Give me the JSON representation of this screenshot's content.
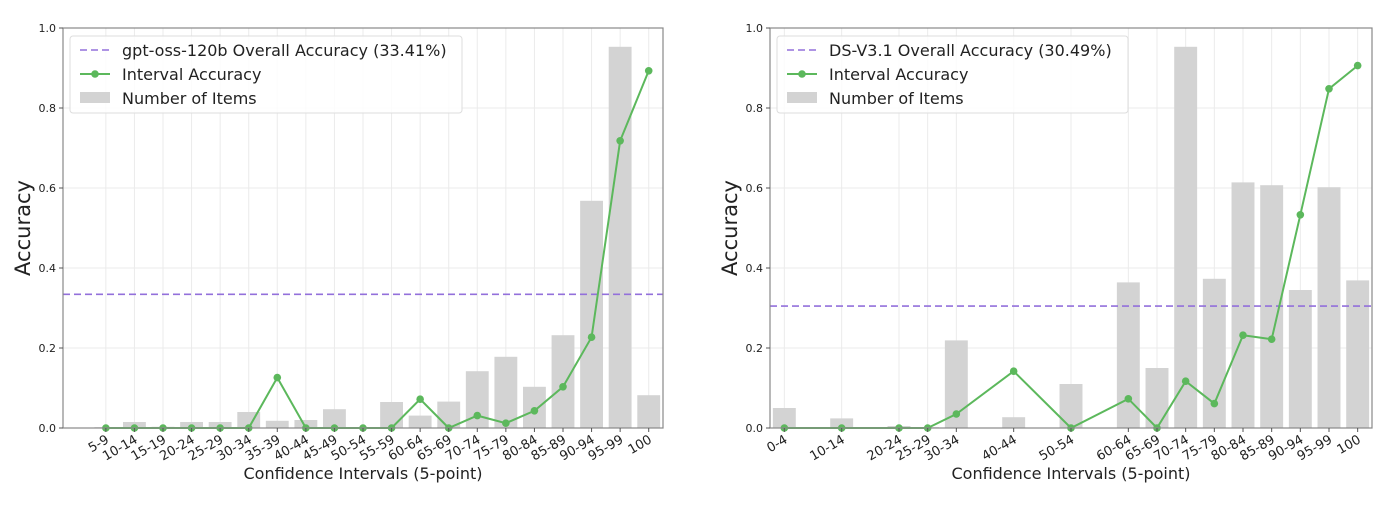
{
  "chart_data": [
    {
      "type": "bar+line",
      "xlabel": "Confidence Intervals (5-point)",
      "ylabel": "Accuracy",
      "ylim": [
        0,
        1.0
      ],
      "yticks": [
        "0.0",
        "0.2",
        "0.4",
        "0.6",
        "0.8",
        "1.0"
      ],
      "grid": true,
      "legend_position": "top-left",
      "categories": [
        "5-9",
        "10-14",
        "15-19",
        "20-24",
        "25-29",
        "30-34",
        "35-39",
        "40-44",
        "45-49",
        "50-54",
        "55-59",
        "60-64",
        "65-69",
        "70-74",
        "75-79",
        "80-84",
        "85-89",
        "90-94",
        "95-99",
        "100"
      ],
      "overall": {
        "name": "gpt-oss-120b Overall Accuracy (33.41%)",
        "value": 0.3341,
        "color": "#9370DB"
      },
      "line": {
        "name": "Interval Accuracy",
        "color": "#5cb85c",
        "values": [
          0,
          0,
          0,
          0,
          0,
          0,
          0.126,
          0,
          0,
          0,
          0,
          0.072,
          0,
          0.031,
          0.012,
          0.043,
          0.103,
          0.227,
          0.718,
          0.893
        ]
      },
      "bars": {
        "name": "Number of Items",
        "color": "#d3d3d3",
        "values": [
          0.002,
          0.015,
          0.003,
          0.015,
          0.015,
          0.04,
          0.018,
          0.02,
          0.047,
          0,
          0.065,
          0.031,
          0.066,
          0.142,
          0.178,
          0.103,
          0.232,
          0.568,
          0.953,
          0.082
        ]
      }
    },
    {
      "type": "bar+line",
      "xlabel": "Confidence Intervals (5-point)",
      "ylabel": "Accuracy",
      "ylim": [
        0,
        1.0
      ],
      "yticks": [
        "0.0",
        "0.2",
        "0.4",
        "0.6",
        "0.8",
        "1.0"
      ],
      "grid": true,
      "legend_position": "top-left",
      "categories": [
        "0-4",
        "10-14",
        "20-24",
        "25-29",
        "30-34",
        "40-44",
        "50-54",
        "60-64",
        "65-69",
        "70-74",
        "75-79",
        "80-84",
        "85-89",
        "90-94",
        "95-99",
        "100"
      ],
      "overall": {
        "name": "DS-V3.1 Overall Accuracy (30.49%)",
        "value": 0.3049,
        "color": "#9370DB"
      },
      "line": {
        "name": "Interval Accuracy",
        "color": "#5cb85c",
        "values": [
          0,
          0,
          0,
          0,
          0.035,
          0.142,
          0,
          0.073,
          0,
          0.117,
          0.061,
          0.232,
          0.222,
          0.533,
          0.848,
          0.906
        ]
      },
      "bars": {
        "name": "Number of Items",
        "color": "#d3d3d3",
        "values": [
          0.05,
          0.024,
          0.005,
          0.002,
          0.219,
          0.027,
          0.11,
          0.364,
          0.15,
          0.953,
          0.373,
          0.614,
          0.607,
          0.345,
          0.602,
          0.369
        ]
      }
    }
  ]
}
